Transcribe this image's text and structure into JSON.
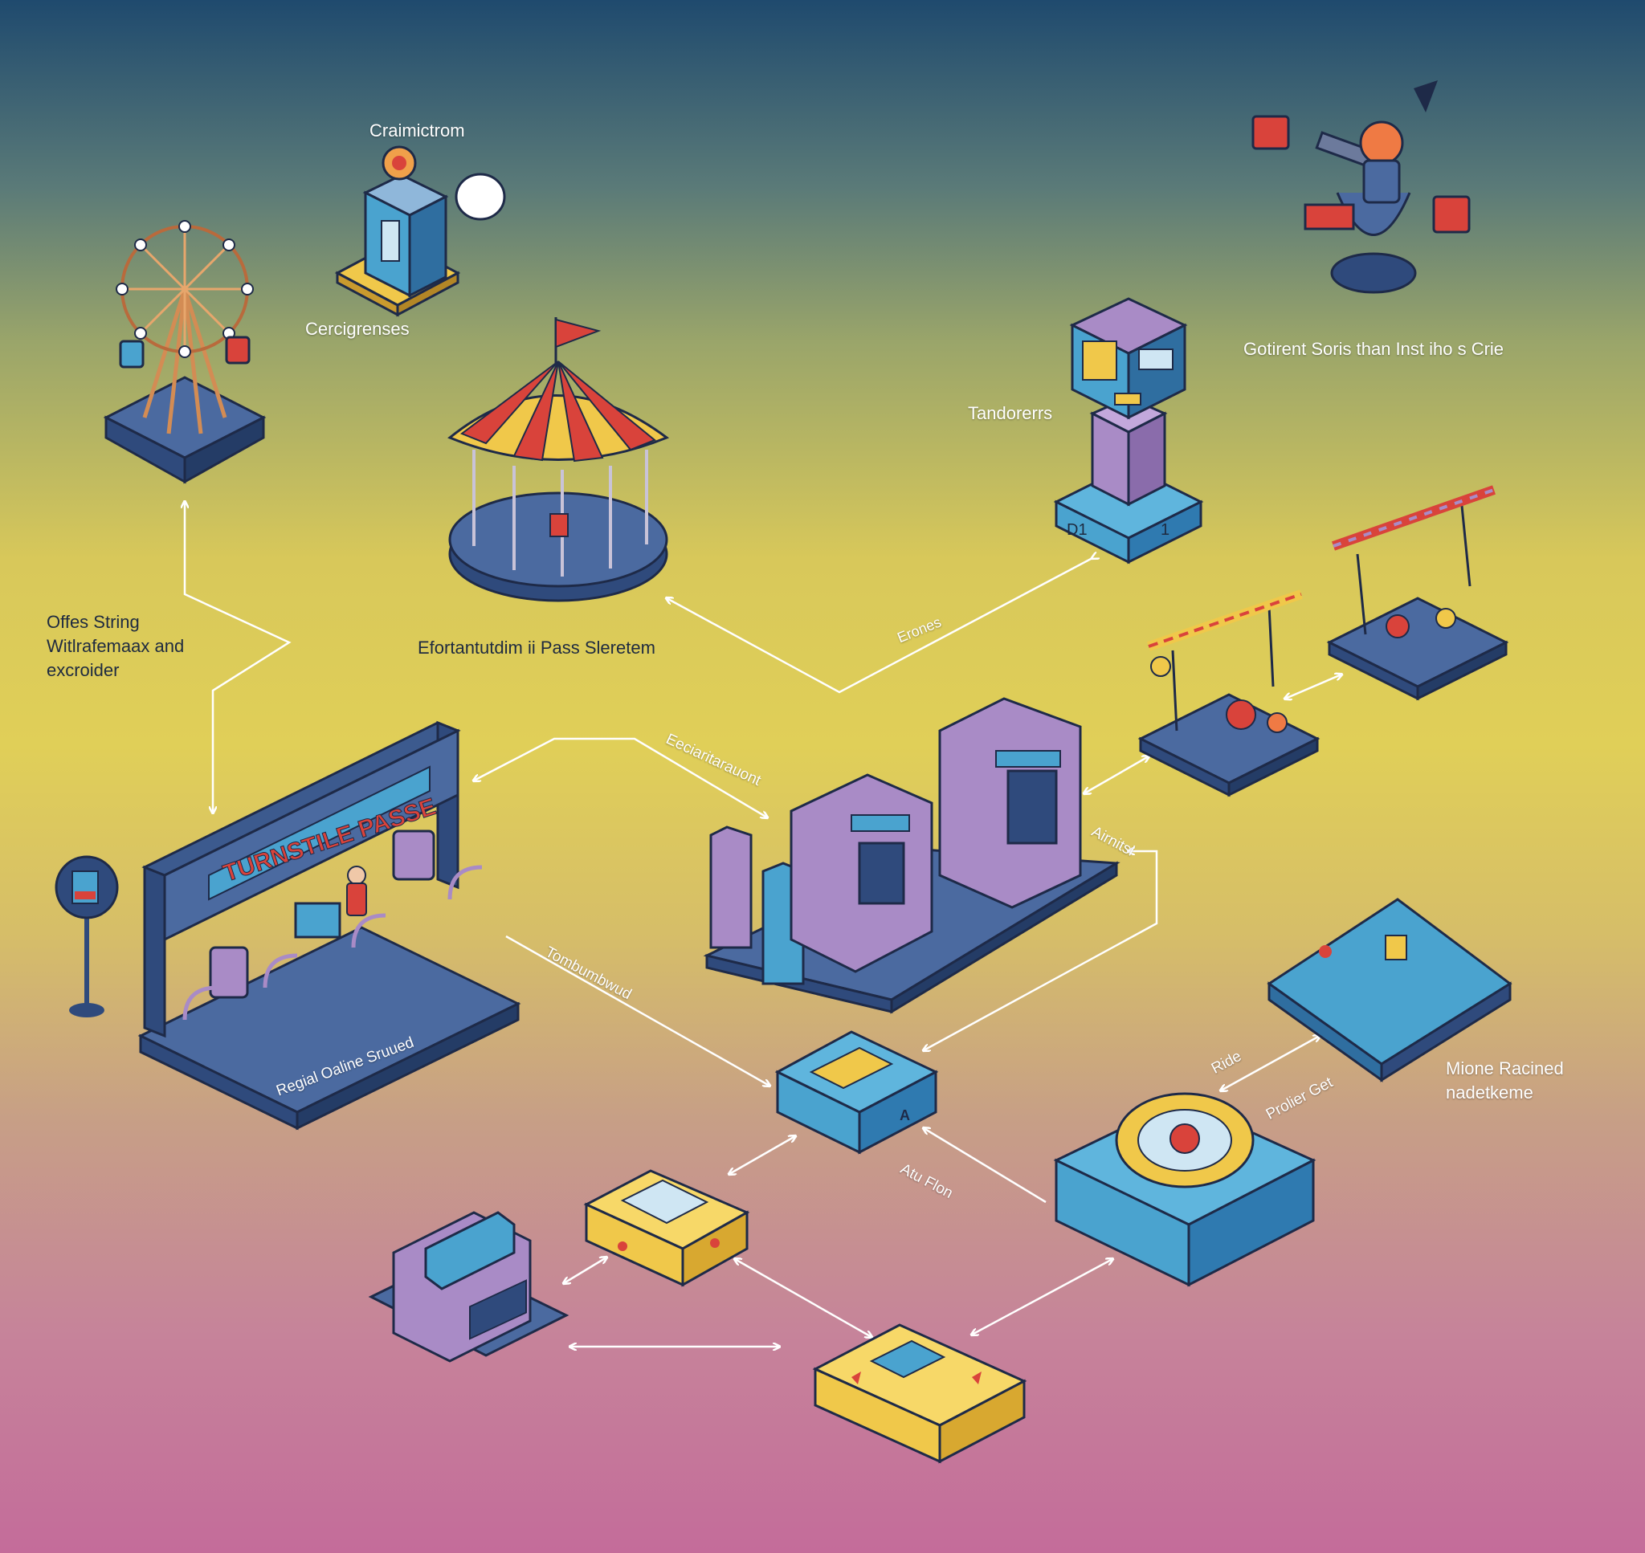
{
  "labels": {
    "top_booth_title": "Craimictrom",
    "top_booth_sub": "Cercigrenses",
    "tower_label": "Tandorerrs",
    "swing_caption": "Gotirent Soris than Inst iho s Crie",
    "left_note": "Offes String\nWitlrafemaax and\nexcroider",
    "carousel_caption": "Efortantutdim ii Pass Sleretem",
    "edge_top_right": "Erones",
    "edge_middle": "Eeciaritarauont",
    "edge_right_gate": "Airnitsl",
    "edge_turnstile_hub": "Tombumbwud",
    "turnstile_sub": "Regial Oaline Sruued",
    "edge_ride": "Ride",
    "edge_profiler": "Prolier Get",
    "edge_hub_in": "Atu Flon",
    "mione_caption": "Mione Racined\nnadetkeme",
    "tower_base_code": "D1",
    "tower_base_num": "1",
    "hub_code": "A",
    "turnstile_sign": "TURNSTILE PASSE"
  },
  "colors": {
    "navy": "#2f4a7c",
    "blue": "#4aa3cf",
    "purple": "#a98bc6",
    "yellow": "#f0c84a",
    "red": "#d9433b",
    "arrow": "#ffffff"
  },
  "icons": [
    "ferris-wheel-icon",
    "ticket-booth-icon",
    "carousel-icon",
    "tower-kiosk-icon",
    "spinning-ride-icon",
    "swing-ride-icon",
    "pirate-ship-ride-icon",
    "turnstile-gate-icon",
    "ticket-machines-icon",
    "central-hub-icon",
    "ride-platform-icon",
    "scanner-box-icon",
    "yellow-scanner-icon",
    "cash-register-icon",
    "card-reader-icon",
    "info-sign-icon"
  ]
}
